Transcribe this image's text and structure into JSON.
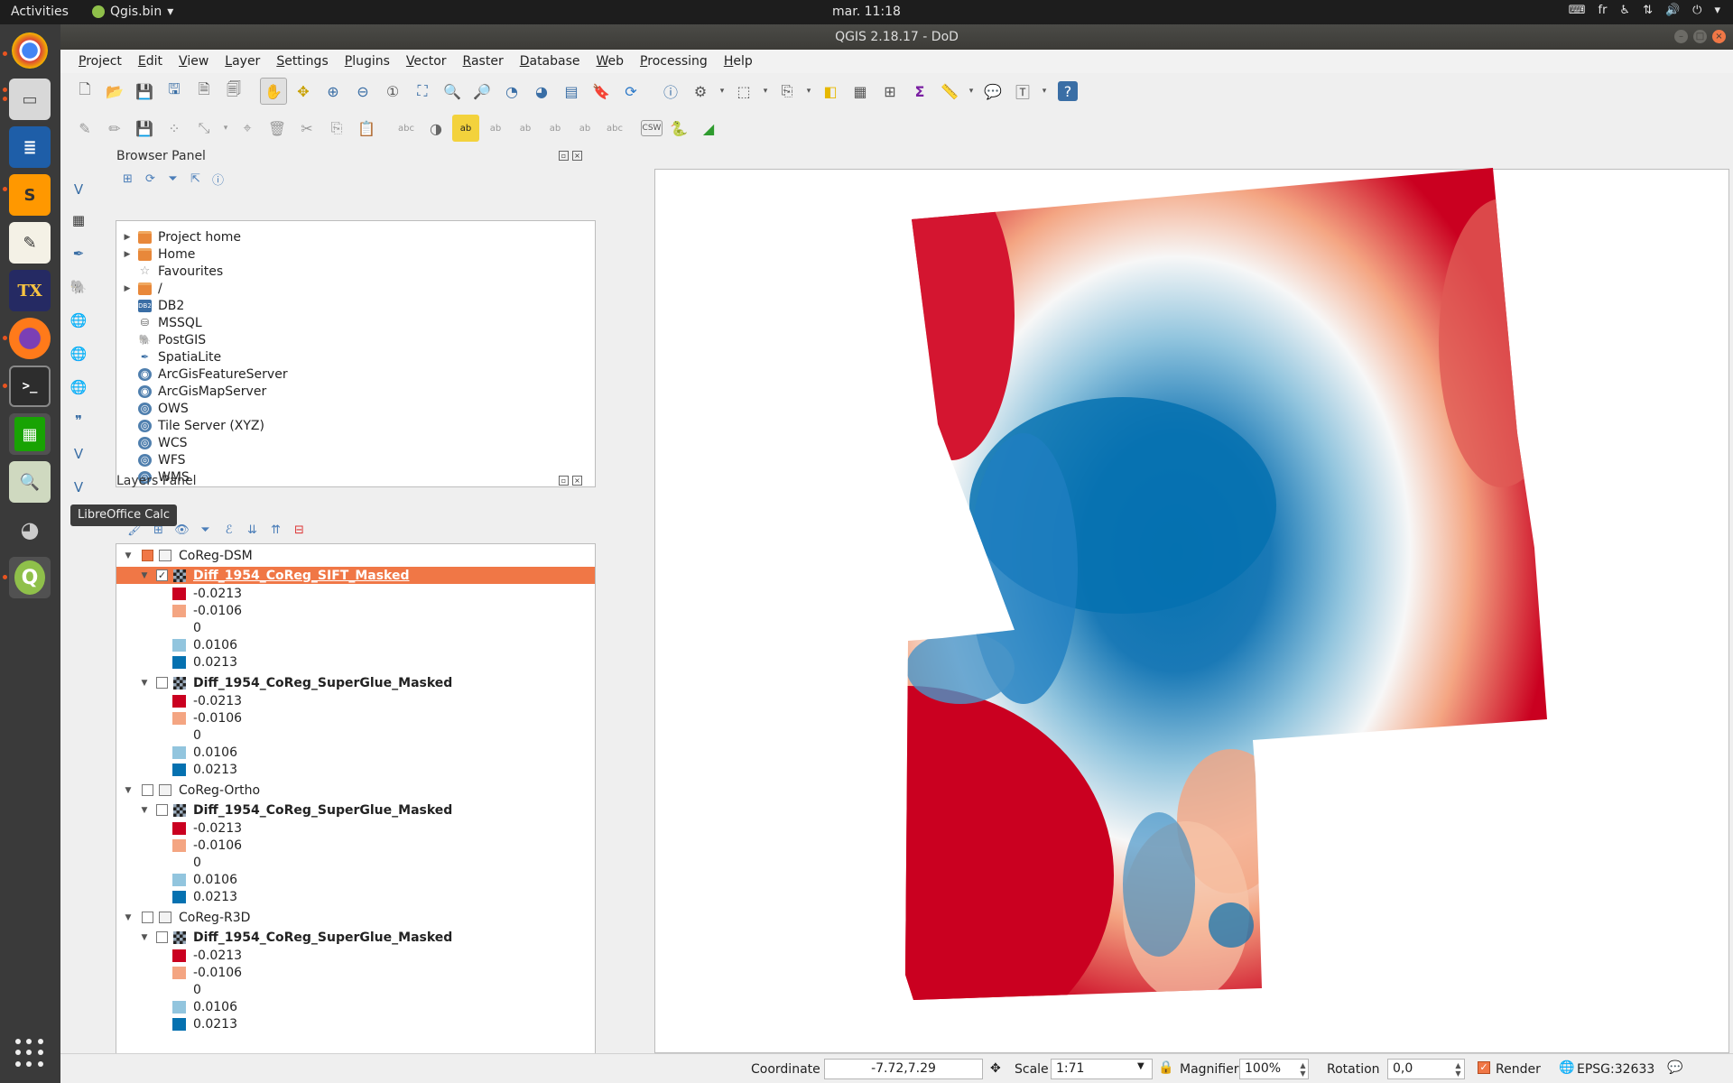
{
  "topbar": {
    "activities": "Activities",
    "app_name": "Qgis.bin",
    "clock": "mar. 11:18",
    "keyboard": "fr"
  },
  "window": {
    "title": "QGIS 2.18.17 - DoD"
  },
  "menu": [
    "Project",
    "Edit",
    "View",
    "Layer",
    "Settings",
    "Plugins",
    "Vector",
    "Raster",
    "Database",
    "Web",
    "Processing",
    "Help"
  ],
  "browser_panel": {
    "title": "Browser Panel",
    "items": [
      {
        "label": "Project home",
        "icon": "folder-icon",
        "expandable": true
      },
      {
        "label": "Home",
        "icon": "folder-icon",
        "expandable": true
      },
      {
        "label": "Favourites",
        "icon": "star-icon",
        "expandable": false
      },
      {
        "label": "/",
        "icon": "folder-icon",
        "expandable": true
      },
      {
        "label": "DB2",
        "icon": "db2-icon",
        "expandable": false
      },
      {
        "label": "MSSQL",
        "icon": "mssql-icon",
        "expandable": false
      },
      {
        "label": "PostGIS",
        "icon": "postgis-icon",
        "expandable": false
      },
      {
        "label": "SpatiaLite",
        "icon": "spatialite-icon",
        "expandable": false
      },
      {
        "label": "ArcGisFeatureServer",
        "icon": "arcgis-icon",
        "expandable": false
      },
      {
        "label": "ArcGisMapServer",
        "icon": "arcgis-icon",
        "expandable": false
      },
      {
        "label": "OWS",
        "icon": "globe-icon",
        "expandable": false
      },
      {
        "label": "Tile Server (XYZ)",
        "icon": "globe-icon",
        "expandable": false
      },
      {
        "label": "WCS",
        "icon": "globe-icon",
        "expandable": false
      },
      {
        "label": "WFS",
        "icon": "globe-icon",
        "expandable": false
      },
      {
        "label": "WMS",
        "icon": "globe-icon",
        "expandable": false
      }
    ]
  },
  "layers_panel": {
    "title": "Layers Panel",
    "tooltip": "LibreOffice Calc",
    "legend_colors": [
      "#ca0020",
      "#f4a582",
      "#ffffff",
      "#92c5de",
      "#0571b0"
    ],
    "legend_values": [
      "-0.0213",
      "-0.0106",
      "0",
      "0.0106",
      "0.0213"
    ],
    "groups": [
      {
        "name": "CoReg-DSM",
        "layer": "Diff_1954_CoReg_SIFT_Masked"
      },
      {
        "name": "",
        "layer": "Diff_1954_CoReg_SuperGlue_Masked"
      },
      {
        "name": "CoReg-Ortho",
        "layer": "Diff_1954_CoReg_SuperGlue_Masked"
      },
      {
        "name": "CoReg-R3D",
        "layer": "Diff_1954_CoReg_SuperGlue_Masked"
      }
    ]
  },
  "statusbar": {
    "coordinate_label": "Coordinate",
    "coordinate_value": "-7.72,7.29",
    "scale_label": "Scale",
    "scale_value": "1:71",
    "magnifier_label": "Magnifier",
    "magnifier_value": "100%",
    "rotation_label": "Rotation",
    "rotation_value": "0,0",
    "render_label": "Render",
    "crs": "EPSG:32633"
  }
}
